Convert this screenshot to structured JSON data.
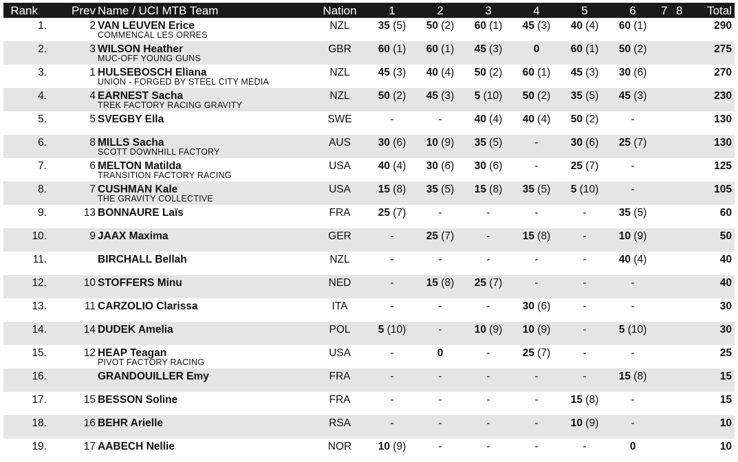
{
  "headers": {
    "rank": "Rank",
    "prev": "Prev",
    "name": "Name / UCI MTB Team",
    "nation": "Nation",
    "rounds": [
      "1",
      "2",
      "3",
      "4",
      "5",
      "6",
      "7",
      "8"
    ],
    "total": "Total"
  },
  "rows": [
    {
      "rank": "1.",
      "prev": "2",
      "name": "VAN LEUVEN Erice",
      "team": "COMMENCAL LES ORRES",
      "nation": "NZL",
      "r": [
        {
          "p": "35",
          "pos": "(5)"
        },
        {
          "p": "50",
          "pos": "(2)"
        },
        {
          "p": "60",
          "pos": "(1)"
        },
        {
          "p": "45",
          "pos": "(3)"
        },
        {
          "p": "40",
          "pos": "(4)"
        },
        {
          "p": "60",
          "pos": "(1)"
        }
      ],
      "total": "290"
    },
    {
      "rank": "2.",
      "prev": "3",
      "name": "WILSON Heather",
      "team": "MUC-OFF YOUNG GUNS",
      "nation": "GBR",
      "r": [
        {
          "p": "60",
          "pos": "(1)"
        },
        {
          "p": "60",
          "pos": "(1)"
        },
        {
          "p": "45",
          "pos": "(3)"
        },
        {
          "p": "0",
          "pos": ""
        },
        {
          "p": "60",
          "pos": "(1)"
        },
        {
          "p": "50",
          "pos": "(2)"
        }
      ],
      "total": "275"
    },
    {
      "rank": "3.",
      "prev": "1",
      "name": "HULSEBOSCH Eliana",
      "team": "UNION - FORGED BY STEEL CITY MEDIA",
      "nation": "NZL",
      "r": [
        {
          "p": "45",
          "pos": "(3)"
        },
        {
          "p": "40",
          "pos": "(4)"
        },
        {
          "p": "50",
          "pos": "(2)"
        },
        {
          "p": "60",
          "pos": "(1)"
        },
        {
          "p": "45",
          "pos": "(3)"
        },
        {
          "p": "30",
          "pos": "(6)"
        }
      ],
      "total": "270"
    },
    {
      "rank": "4.",
      "prev": "4",
      "name": "EARNEST Sacha",
      "team": "TREK FACTORY RACING GRAVITY",
      "nation": "NZL",
      "r": [
        {
          "p": "50",
          "pos": "(2)"
        },
        {
          "p": "45",
          "pos": "(3)"
        },
        {
          "p": "5",
          "pos": "(10)"
        },
        {
          "p": "50",
          "pos": "(2)"
        },
        {
          "p": "35",
          "pos": "(5)"
        },
        {
          "p": "45",
          "pos": "(3)"
        }
      ],
      "total": "230"
    },
    {
      "rank": "5.",
      "prev": "5",
      "name": "SVEGBY Ella",
      "team": "",
      "nation": "SWE",
      "r": [
        {
          "p": "",
          "pos": "-"
        },
        {
          "p": "",
          "pos": "-"
        },
        {
          "p": "40",
          "pos": "(4)"
        },
        {
          "p": "40",
          "pos": "(4)"
        },
        {
          "p": "50",
          "pos": "(2)"
        },
        {
          "p": "",
          "pos": "-"
        }
      ],
      "total": "130"
    },
    {
      "rank": "6.",
      "prev": "8",
      "name": "MILLS Sacha",
      "team": "SCOTT DOWNHILL FACTORY",
      "nation": "AUS",
      "r": [
        {
          "p": "30",
          "pos": "(6)"
        },
        {
          "p": "10",
          "pos": "(9)"
        },
        {
          "p": "35",
          "pos": "(5)"
        },
        {
          "p": "",
          "pos": "-"
        },
        {
          "p": "30",
          "pos": "(6)"
        },
        {
          "p": "25",
          "pos": "(7)"
        }
      ],
      "total": "130"
    },
    {
      "rank": "7.",
      "prev": "6",
      "name": "MELTON Matilda",
      "team": "TRANSITION FACTORY RACING",
      "nation": "USA",
      "r": [
        {
          "p": "40",
          "pos": "(4)"
        },
        {
          "p": "30",
          "pos": "(6)"
        },
        {
          "p": "30",
          "pos": "(6)"
        },
        {
          "p": "",
          "pos": "-"
        },
        {
          "p": "25",
          "pos": "(7)"
        },
        {
          "p": "",
          "pos": "-"
        }
      ],
      "total": "125"
    },
    {
      "rank": "8.",
      "prev": "7",
      "name": "CUSHMAN Kale",
      "team": "THE GRAVITY COLLECTIVE",
      "nation": "USA",
      "r": [
        {
          "p": "15",
          "pos": "(8)"
        },
        {
          "p": "35",
          "pos": "(5)"
        },
        {
          "p": "15",
          "pos": "(8)"
        },
        {
          "p": "35",
          "pos": "(5)"
        },
        {
          "p": "5",
          "pos": "(10)"
        },
        {
          "p": "",
          "pos": "-"
        }
      ],
      "total": "105"
    },
    {
      "rank": "9.",
      "prev": "13",
      "name": "BONNAURE Laïs",
      "team": "",
      "nation": "FRA",
      "r": [
        {
          "p": "25",
          "pos": "(7)"
        },
        {
          "p": "",
          "pos": "-"
        },
        {
          "p": "",
          "pos": "-"
        },
        {
          "p": "",
          "pos": "-"
        },
        {
          "p": "",
          "pos": "-"
        },
        {
          "p": "35",
          "pos": "(5)"
        }
      ],
      "total": "60"
    },
    {
      "rank": "10.",
      "prev": "9",
      "name": "JAAX Maxima",
      "team": "",
      "nation": "GER",
      "r": [
        {
          "p": "",
          "pos": "-"
        },
        {
          "p": "25",
          "pos": "(7)"
        },
        {
          "p": "",
          "pos": "-"
        },
        {
          "p": "15",
          "pos": "(8)"
        },
        {
          "p": "",
          "pos": "-"
        },
        {
          "p": "10",
          "pos": "(9)"
        }
      ],
      "total": "50"
    },
    {
      "rank": "11.",
      "prev": "",
      "name": "BIRCHALL Bellah",
      "team": "",
      "nation": "NZL",
      "r": [
        {
          "p": "",
          "pos": "-"
        },
        {
          "p": "",
          "pos": "-"
        },
        {
          "p": "",
          "pos": "-"
        },
        {
          "p": "",
          "pos": "-"
        },
        {
          "p": "",
          "pos": "-"
        },
        {
          "p": "40",
          "pos": "(4)"
        }
      ],
      "total": "40"
    },
    {
      "rank": "12.",
      "prev": "10",
      "name": "STOFFERS Minu",
      "team": "",
      "nation": "NED",
      "r": [
        {
          "p": "",
          "pos": "-"
        },
        {
          "p": "15",
          "pos": "(8)"
        },
        {
          "p": "25",
          "pos": "(7)"
        },
        {
          "p": "",
          "pos": "-"
        },
        {
          "p": "",
          "pos": "-"
        },
        {
          "p": "",
          "pos": "-"
        }
      ],
      "total": "40"
    },
    {
      "rank": "13.",
      "prev": "11",
      "name": "CARZOLIO Clarissa",
      "team": "",
      "nation": "ITA",
      "r": [
        {
          "p": "",
          "pos": "-"
        },
        {
          "p": "",
          "pos": "-"
        },
        {
          "p": "",
          "pos": "-"
        },
        {
          "p": "30",
          "pos": "(6)"
        },
        {
          "p": "",
          "pos": "-"
        },
        {
          "p": "",
          "pos": "-"
        }
      ],
      "total": "30"
    },
    {
      "rank": "14.",
      "prev": "14",
      "name": "DUDEK Amelia",
      "team": "",
      "nation": "POL",
      "r": [
        {
          "p": "5",
          "pos": "(10)"
        },
        {
          "p": "",
          "pos": "-"
        },
        {
          "p": "10",
          "pos": "(9)"
        },
        {
          "p": "10",
          "pos": "(9)"
        },
        {
          "p": "",
          "pos": "-"
        },
        {
          "p": "5",
          "pos": "(10)"
        }
      ],
      "total": "30"
    },
    {
      "rank": "15.",
      "prev": "12",
      "name": "HEAP Teagan",
      "team": "PIVOT FACTORY RACING",
      "nation": "USA",
      "r": [
        {
          "p": "",
          "pos": "-"
        },
        {
          "p": "0",
          "pos": ""
        },
        {
          "p": "",
          "pos": "-"
        },
        {
          "p": "25",
          "pos": "(7)"
        },
        {
          "p": "",
          "pos": "-"
        },
        {
          "p": "",
          "pos": "-"
        }
      ],
      "total": "25"
    },
    {
      "rank": "16.",
      "prev": "",
      "name": "GRANDOUILLER Emy",
      "team": "",
      "nation": "FRA",
      "r": [
        {
          "p": "",
          "pos": "-"
        },
        {
          "p": "",
          "pos": "-"
        },
        {
          "p": "",
          "pos": "-"
        },
        {
          "p": "",
          "pos": "-"
        },
        {
          "p": "",
          "pos": "-"
        },
        {
          "p": "15",
          "pos": "(8)"
        }
      ],
      "total": "15"
    },
    {
      "rank": "17.",
      "prev": "15",
      "name": "BESSON Soline",
      "team": "",
      "nation": "FRA",
      "r": [
        {
          "p": "",
          "pos": "-"
        },
        {
          "p": "",
          "pos": "-"
        },
        {
          "p": "",
          "pos": "-"
        },
        {
          "p": "",
          "pos": "-"
        },
        {
          "p": "15",
          "pos": "(8)"
        },
        {
          "p": "",
          "pos": "-"
        }
      ],
      "total": "15"
    },
    {
      "rank": "18.",
      "prev": "16",
      "name": "BEHR Arielle",
      "team": "",
      "nation": "RSA",
      "r": [
        {
          "p": "",
          "pos": "-"
        },
        {
          "p": "",
          "pos": "-"
        },
        {
          "p": "",
          "pos": "-"
        },
        {
          "p": "",
          "pos": "-"
        },
        {
          "p": "10",
          "pos": "(9)"
        },
        {
          "p": "",
          "pos": "-"
        }
      ],
      "total": "10"
    },
    {
      "rank": "19.",
      "prev": "17",
      "name": "AABECH Nellie",
      "team": "",
      "nation": "NOR",
      "r": [
        {
          "p": "10",
          "pos": "(9)"
        },
        {
          "p": "",
          "pos": "-"
        },
        {
          "p": "",
          "pos": "-"
        },
        {
          "p": "",
          "pos": "-"
        },
        {
          "p": "",
          "pos": "-"
        },
        {
          "p": "0",
          "pos": ""
        }
      ],
      "total": "10"
    }
  ]
}
